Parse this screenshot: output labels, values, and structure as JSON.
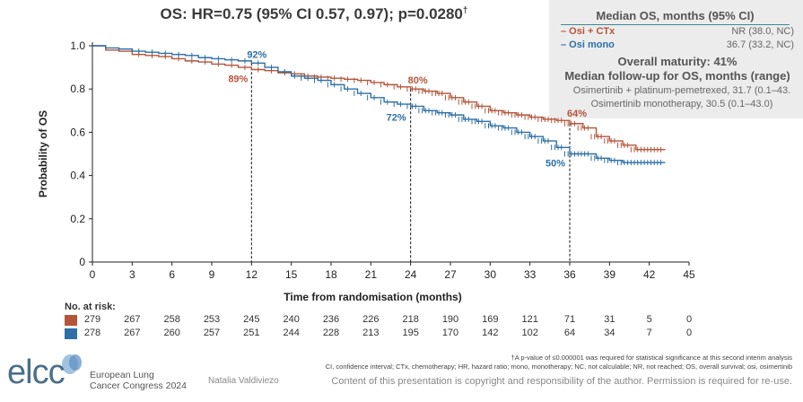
{
  "title": "OS: HR=0.75 (95% CI 0.57, 0.97); p=0.0280",
  "title_sup": "†",
  "legend": {
    "header": "Median OS, months (95% CI)",
    "rows": [
      {
        "name": "– Osi + CTx",
        "value": "NR (38.0, NC)",
        "color": "#b5543a"
      },
      {
        "name": "– Osi mono",
        "value": "36.7 (33.2, NC)",
        "color": "#2e6fa7"
      }
    ],
    "maturity": "Overall maturity: 41%",
    "followup_header": "Median follow-up for OS, months (range)",
    "followup_lines": [
      "Osimertinib + platinum-pemetrexed, 31.7 (0.1–43.",
      "Osimertinib monotherapy, 30.5 (0.1–43.0)"
    ]
  },
  "chart_data": {
    "type": "line",
    "title": "OS: HR=0.75 (95% CI 0.57, 0.97); p=0.0280†",
    "xlabel": "Time from randomisation (months)",
    "ylabel": "Probability of OS",
    "xlim": [
      0,
      45
    ],
    "ylim": [
      0,
      1.0
    ],
    "x_ticks": [
      "0",
      "3",
      "6",
      "9",
      "12",
      "15",
      "18",
      "21",
      "24",
      "27",
      "30",
      "33",
      "36",
      "39",
      "42",
      "45"
    ],
    "y_ticks": [
      "0",
      "0.2",
      "0.4",
      "0.6",
      "0.8",
      "1.0"
    ],
    "series": [
      {
        "name": "Osi + CTx",
        "color": "#b5543a",
        "x": [
          0,
          1,
          2,
          3,
          4,
          5,
          6,
          7,
          8,
          9,
          10,
          11,
          12,
          13,
          14,
          15,
          16,
          17,
          18,
          19,
          20,
          21,
          22,
          23,
          24,
          25,
          26,
          27,
          28,
          29,
          30,
          31,
          32,
          33,
          34,
          35,
          36,
          37,
          38,
          39,
          40,
          41,
          42,
          43
        ],
        "y": [
          1.0,
          0.98,
          0.975,
          0.96,
          0.955,
          0.95,
          0.94,
          0.93,
          0.925,
          0.915,
          0.91,
          0.9,
          0.89,
          0.885,
          0.875,
          0.87,
          0.86,
          0.855,
          0.85,
          0.845,
          0.84,
          0.83,
          0.82,
          0.81,
          0.8,
          0.79,
          0.78,
          0.76,
          0.74,
          0.72,
          0.7,
          0.69,
          0.68,
          0.67,
          0.66,
          0.655,
          0.64,
          0.62,
          0.58,
          0.56,
          0.54,
          0.52,
          0.52,
          0.52
        ]
      },
      {
        "name": "Osi mono",
        "color": "#2e6fa7",
        "x": [
          0,
          1,
          2,
          3,
          4,
          5,
          6,
          7,
          8,
          9,
          10,
          11,
          12,
          13,
          14,
          15,
          16,
          17,
          18,
          19,
          20,
          21,
          22,
          23,
          24,
          25,
          26,
          27,
          28,
          29,
          30,
          31,
          32,
          33,
          34,
          35,
          36,
          37,
          38,
          39,
          40,
          41,
          42,
          43
        ],
        "y": [
          1.0,
          0.99,
          0.985,
          0.975,
          0.97,
          0.965,
          0.96,
          0.955,
          0.945,
          0.94,
          0.935,
          0.93,
          0.92,
          0.9,
          0.88,
          0.86,
          0.85,
          0.84,
          0.82,
          0.8,
          0.78,
          0.76,
          0.74,
          0.73,
          0.72,
          0.7,
          0.69,
          0.68,
          0.66,
          0.65,
          0.63,
          0.62,
          0.6,
          0.58,
          0.56,
          0.53,
          0.5,
          0.5,
          0.48,
          0.47,
          0.46,
          0.46,
          0.46,
          0.46
        ]
      }
    ],
    "annotations": [
      {
        "text": "92%",
        "x": 12,
        "y": 0.92,
        "series": "Osi mono"
      },
      {
        "text": "89%",
        "x": 12,
        "y": 0.89,
        "series": "Osi + CTx"
      },
      {
        "text": "80%",
        "x": 24,
        "y": 0.8,
        "series": "Osi + CTx"
      },
      {
        "text": "72%",
        "x": 24,
        "y": 0.72,
        "series": "Osi mono"
      },
      {
        "text": "64%",
        "x": 36,
        "y": 0.64,
        "series": "Osi + CTx"
      },
      {
        "text": "50%",
        "x": 36,
        "y": 0.5,
        "series": "Osi mono"
      }
    ],
    "reference_lines_x": [
      12,
      24,
      36
    ]
  },
  "risk_table": {
    "header": "No. at risk:",
    "times": [
      0,
      3,
      6,
      9,
      12,
      15,
      18,
      21,
      24,
      27,
      30,
      33,
      36,
      39,
      42,
      45
    ],
    "rows": [
      {
        "color": "#b5543a",
        "values": [
          "279",
          "267",
          "258",
          "253",
          "245",
          "240",
          "236",
          "226",
          "218",
          "190",
          "169",
          "121",
          "71",
          "31",
          "5",
          "0"
        ]
      },
      {
        "color": "#2e6fa7",
        "values": [
          "278",
          "267",
          "260",
          "257",
          "251",
          "244",
          "228",
          "213",
          "195",
          "170",
          "142",
          "102",
          "64",
          "34",
          "7",
          "0"
        ]
      }
    ]
  },
  "footnotes": {
    "line1": "†A p-value of ≤0.000001 was required for statistical significance at this second interim analysis",
    "line2": "CI, confidence interval; CTx, chemotherapy; HR, hazard ratio; mono, monotherapy; NC, not calculable; NR, not reached; OS, overall survival; osi, osimertinib",
    "copyright": "Content of this presentation is copyright and responsibility of the author. Permission is required for re-use."
  },
  "branding": {
    "logo": "elcc",
    "congress_line1": "European Lung",
    "congress_line2": "Cancer Congress 2024",
    "author": "Natalia Valdiviezo"
  }
}
